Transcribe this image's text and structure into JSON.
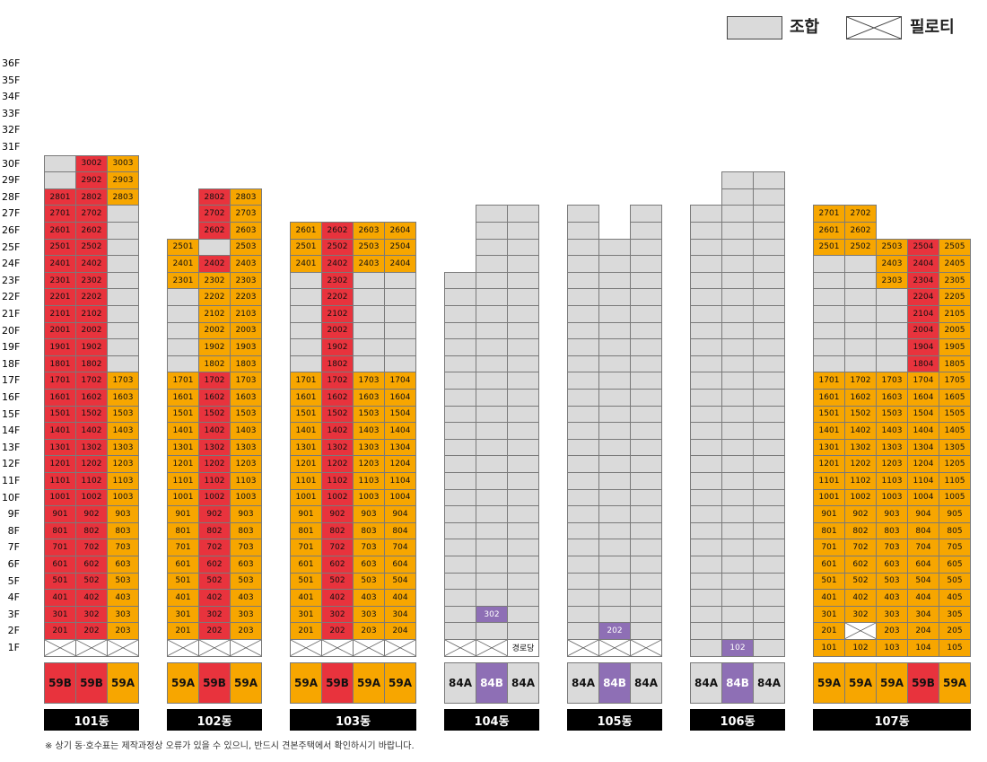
{
  "colors": {
    "red": "#e8333d",
    "orange": "#f7a600",
    "gray": "#dadada",
    "purple": "#8e6fb5",
    "white": "#ffffff"
  },
  "legend": [
    {
      "key": "G",
      "label": "조합"
    },
    {
      "key": "P",
      "label": "필로티"
    }
  ],
  "floors": [
    "1F",
    "2F",
    "3F",
    "4F",
    "5F",
    "6F",
    "7F",
    "8F",
    "9F",
    "10F",
    "11F",
    "12F",
    "13F",
    "14F",
    "15F",
    "16F",
    "17F",
    "18F",
    "19F",
    "20F",
    "21F",
    "22F",
    "23F",
    "24F",
    "25F",
    "26F",
    "27F",
    "28F",
    "29F",
    "30F",
    "31F",
    "32F",
    "33F",
    "34F",
    "35F",
    "36F"
  ],
  "buildings": [
    {
      "name": "101동",
      "units": [
        "59B",
        "59B",
        "59A"
      ],
      "type_colors": [
        "R",
        "R",
        "O"
      ],
      "columns": [
        {
          "line": "01",
          "spec": [
            [
              "P",
              1
            ],
            [
              "R",
              28
            ],
            [
              "G",
              30
            ]
          ]
        },
        {
          "line": "02",
          "spec": [
            [
              "P",
              1
            ],
            [
              "R",
              30
            ]
          ]
        },
        {
          "line": "03",
          "spec": [
            [
              "P",
              1
            ],
            [
              "O",
              17
            ],
            [
              "G",
              27
            ],
            [
              "O",
              30
            ]
          ]
        }
      ]
    },
    {
      "name": "102동",
      "units": [
        "59A",
        "59B",
        "59A"
      ],
      "type_colors": [
        "O",
        "R",
        "O"
      ],
      "columns": [
        {
          "line": "01",
          "spec": [
            [
              "P",
              1
            ],
            [
              "O",
              17
            ],
            [
              "G",
              22
            ],
            [
              "O",
              25
            ]
          ]
        },
        {
          "line": "02",
          "spec": [
            [
              "P",
              1
            ],
            [
              "R",
              17
            ],
            [
              "O",
              23
            ],
            [
              "R",
              24
            ],
            [
              "G",
              25
            ],
            [
              "R",
              28
            ]
          ]
        },
        {
          "line": "03",
          "spec": [
            [
              "P",
              1
            ],
            [
              "O",
              28
            ]
          ]
        }
      ]
    },
    {
      "name": "103동",
      "units": [
        "59A",
        "59B",
        "59A",
        "59A"
      ],
      "type_colors": [
        "O",
        "R",
        "O",
        "O"
      ],
      "columns": [
        {
          "line": "01",
          "spec": [
            [
              "P",
              1
            ],
            [
              "O",
              17
            ],
            [
              "G",
              23
            ],
            [
              "O",
              26
            ]
          ]
        },
        {
          "line": "02",
          "spec": [
            [
              "P",
              1
            ],
            [
              "R",
              26
            ]
          ]
        },
        {
          "line": "03",
          "spec": [
            [
              "P",
              1
            ],
            [
              "O",
              17
            ],
            [
              "G",
              23
            ],
            [
              "O",
              26
            ]
          ]
        },
        {
          "line": "04",
          "spec": [
            [
              "P",
              1
            ],
            [
              "O",
              17
            ],
            [
              "G",
              23
            ],
            [
              "O",
              26
            ]
          ]
        }
      ]
    },
    {
      "name": "104동",
      "units": [
        "84A",
        "84B",
        "84A"
      ],
      "type_colors": [
        "G",
        "U",
        "G"
      ],
      "columns": [
        {
          "line": "01",
          "spec": [
            [
              "P",
              1
            ],
            [
              "G",
              23
            ]
          ]
        },
        {
          "line": "02",
          "spec": [
            [
              "P",
              1
            ],
            [
              "G",
              2
            ],
            [
              "U",
              3
            ],
            [
              "G",
              27
            ]
          ]
        },
        {
          "line": "03",
          "spec": [
            [
              "T",
              1
            ],
            [
              "G",
              27
            ]
          ]
        }
      ]
    },
    {
      "name": "105동",
      "units": [
        "84A",
        "84B",
        "84A"
      ],
      "type_colors": [
        "G",
        "U",
        "G"
      ],
      "columns": [
        {
          "line": "01",
          "spec": [
            [
              "P",
              1
            ],
            [
              "G",
              27
            ]
          ]
        },
        {
          "line": "02",
          "spec": [
            [
              "P",
              1
            ],
            [
              "U",
              2
            ],
            [
              "G",
              25
            ]
          ]
        },
        {
          "line": "03",
          "spec": [
            [
              "P",
              1
            ],
            [
              "G",
              27
            ]
          ]
        }
      ]
    },
    {
      "name": "106동",
      "units": [
        "84A",
        "84B",
        "84A"
      ],
      "type_colors": [
        "G",
        "U",
        "G"
      ],
      "columns": [
        {
          "line": "01",
          "spec": [
            [
              "G",
              1
            ],
            [
              "G",
              27
            ]
          ]
        },
        {
          "line": "02",
          "spec": [
            [
              "U",
              1
            ],
            [
              "G",
              29
            ]
          ]
        },
        {
          "line": "03",
          "spec": [
            [
              "G",
              1
            ],
            [
              "G",
              29
            ]
          ]
        }
      ]
    },
    {
      "name": "107동",
      "units": [
        "59A",
        "59A",
        "59A",
        "59B",
        "59A"
      ],
      "type_colors": [
        "O",
        "O",
        "O",
        "R",
        "O"
      ],
      "columns": [
        {
          "line": "01",
          "spec": [
            [
              "O",
              17
            ],
            [
              "G",
              24
            ],
            [
              "O",
              27
            ]
          ]
        },
        {
          "line": "02",
          "spec": [
            [
              "O",
              1
            ],
            [
              "P",
              2
            ],
            [
              "O",
              17
            ],
            [
              "G",
              24
            ],
            [
              "O",
              27
            ]
          ]
        },
        {
          "line": "03",
          "spec": [
            [
              "O",
              17
            ],
            [
              "G",
              22
            ],
            [
              "O",
              25
            ]
          ]
        },
        {
          "line": "04",
          "spec": [
            [
              "O",
              17
            ],
            [
              "R",
              25
            ]
          ]
        },
        {
          "line": "05",
          "spec": [
            [
              "O",
              25
            ]
          ]
        }
      ]
    }
  ],
  "special_labels": {
    "senior_center": "경로당"
  },
  "footnote": "※ 상기 동·호수표는 제작과정상 오류가 있을 수 있으니, 반드시 견본주택에서 확인하시기 바랍니다."
}
